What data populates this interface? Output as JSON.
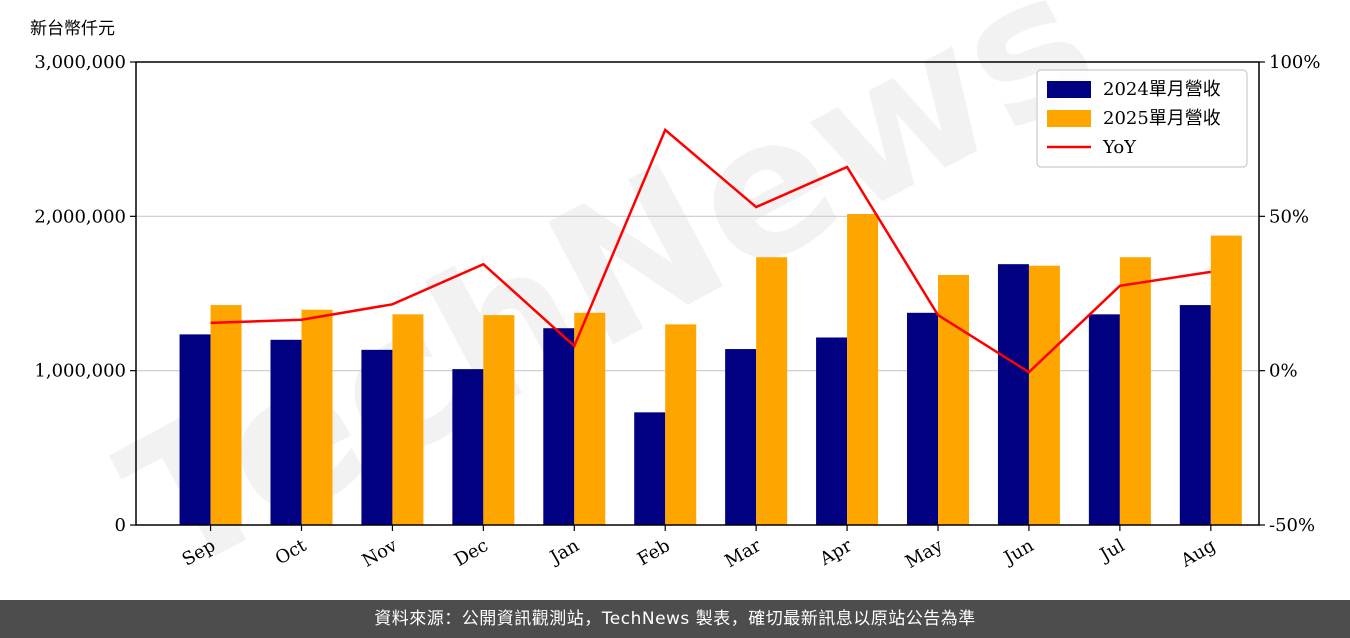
{
  "unit_label": "新台幣仟元",
  "footer_text": "資料來源：公開資訊觀測站，TechNews 製表，確切最新訊息以原站公告為準",
  "watermark": "TechNews",
  "colors": {
    "bar2024": "#000080",
    "bar2025": "#ffa500",
    "yoy": "#ff0000",
    "grid": "#cccccc"
  },
  "chart_data": {
    "type": "bar",
    "categories": [
      "Sep",
      "Oct",
      "Nov",
      "Dec",
      "Jan",
      "Feb",
      "Mar",
      "Apr",
      "May",
      "Jun",
      "Jul",
      "Aug"
    ],
    "series": [
      {
        "name": "2024單月營收",
        "values": [
          1235000,
          1200000,
          1135000,
          1010000,
          1275000,
          730000,
          1140000,
          1215000,
          1375000,
          1690000,
          1365000,
          1425000
        ]
      },
      {
        "name": "2025單月營收",
        "values": [
          1425000,
          1395000,
          1365000,
          1360000,
          1375000,
          1300000,
          1735000,
          2015000,
          1620000,
          1680000,
          1735000,
          1875000
        ]
      },
      {
        "name": "YoY",
        "type": "line",
        "axis": "right",
        "values": [
          15.5,
          16.5,
          21.5,
          34.5,
          8,
          78,
          53,
          66,
          18,
          -0.5,
          27.5,
          32
        ]
      }
    ],
    "ylim": [
      0,
      3000000
    ],
    "y2lim": [
      -50,
      100
    ],
    "yticks": [
      "0",
      "1,000,000",
      "2,000,000",
      "3,000,000"
    ],
    "y2ticks": [
      "-50%",
      "0%",
      "50%",
      "100%"
    ],
    "grid": "horizontal",
    "legend": "top-right"
  }
}
